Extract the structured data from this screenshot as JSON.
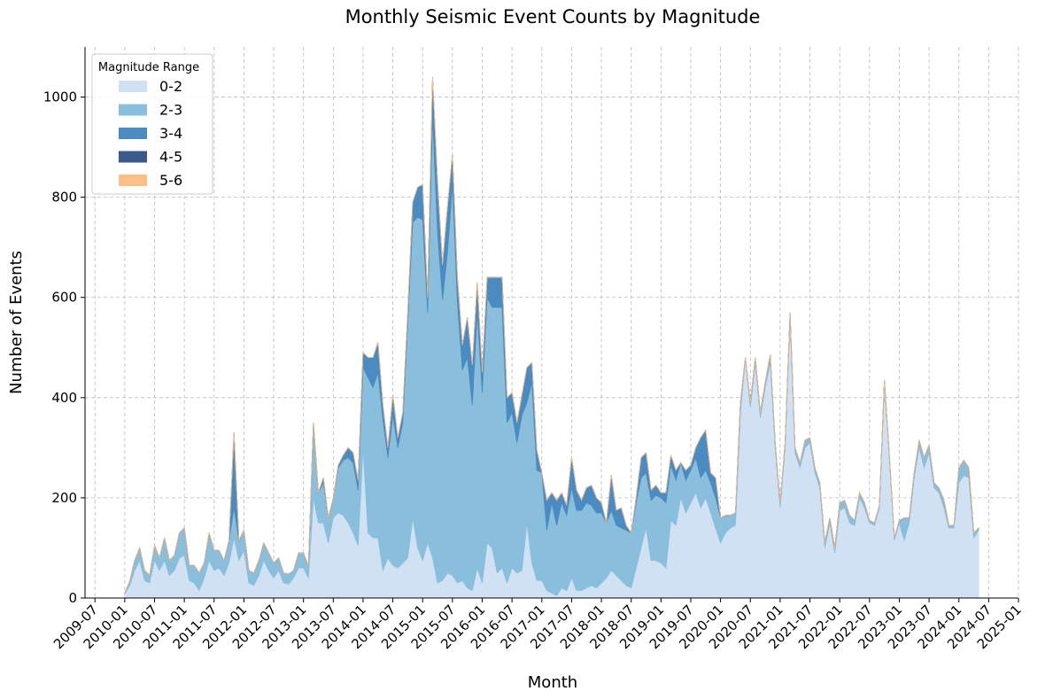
{
  "chart_data": {
    "type": "stacked_area",
    "title": "Monthly Seismic Event Counts by Magnitude",
    "x_label": "Month",
    "y_label": "Number of Events",
    "legend_title": "Magnitude Range",
    "legend_position": "upper left",
    "grid": true,
    "x": [
      "2010-01",
      "2010-02",
      "2010-03",
      "2010-04",
      "2010-05",
      "2010-06",
      "2010-07",
      "2010-08",
      "2010-09",
      "2010-10",
      "2010-11",
      "2010-12",
      "2011-01",
      "2011-02",
      "2011-03",
      "2011-04",
      "2011-05",
      "2011-06",
      "2011-07",
      "2011-08",
      "2011-09",
      "2011-10",
      "2011-11",
      "2011-12",
      "2012-01",
      "2012-02",
      "2012-03",
      "2012-04",
      "2012-05",
      "2012-06",
      "2012-07",
      "2012-08",
      "2012-09",
      "2012-10",
      "2012-11",
      "2012-12",
      "2013-01",
      "2013-02",
      "2013-03",
      "2013-04",
      "2013-05",
      "2013-06",
      "2013-07",
      "2013-08",
      "2013-09",
      "2013-10",
      "2013-11",
      "2013-12",
      "2014-01",
      "2014-02",
      "2014-03",
      "2014-04",
      "2014-05",
      "2014-06",
      "2014-07",
      "2014-08",
      "2014-09",
      "2014-10",
      "2014-11",
      "2014-12",
      "2015-01",
      "2015-02",
      "2015-03",
      "2015-04",
      "2015-05",
      "2015-06",
      "2015-07",
      "2015-08",
      "2015-09",
      "2015-10",
      "2015-11",
      "2015-12",
      "2016-01",
      "2016-02",
      "2016-03",
      "2016-04",
      "2016-05",
      "2016-06",
      "2016-07",
      "2016-08",
      "2016-09",
      "2016-10",
      "2016-11",
      "2016-12",
      "2017-01",
      "2017-02",
      "2017-03",
      "2017-04",
      "2017-05",
      "2017-06",
      "2017-07",
      "2017-08",
      "2017-09",
      "2017-10",
      "2017-11",
      "2017-12",
      "2018-01",
      "2018-02",
      "2018-03",
      "2018-04",
      "2018-05",
      "2018-06",
      "2018-07",
      "2018-08",
      "2018-09",
      "2018-10",
      "2018-11",
      "2018-12",
      "2019-01",
      "2019-02",
      "2019-03",
      "2019-04",
      "2019-05",
      "2019-06",
      "2019-07",
      "2019-08",
      "2019-09",
      "2019-10",
      "2019-11",
      "2019-12",
      "2020-01",
      "2020-02",
      "2020-03",
      "2020-04",
      "2020-05",
      "2020-06",
      "2020-07",
      "2020-08",
      "2020-09",
      "2020-10",
      "2020-11",
      "2020-12",
      "2021-01",
      "2021-02",
      "2021-03",
      "2021-04",
      "2021-05",
      "2021-06",
      "2021-07",
      "2021-08",
      "2021-09",
      "2021-10",
      "2021-11",
      "2021-12",
      "2022-01",
      "2022-02",
      "2022-03",
      "2022-04",
      "2022-05",
      "2022-06",
      "2022-07",
      "2022-08",
      "2022-09",
      "2022-10",
      "2022-11",
      "2022-12",
      "2023-01",
      "2023-02",
      "2023-03",
      "2023-04",
      "2023-05",
      "2023-06",
      "2023-07",
      "2023-08",
      "2023-09",
      "2023-10",
      "2023-11",
      "2023-12",
      "2024-01",
      "2024-02",
      "2024-03",
      "2024-04",
      "2024-05"
    ],
    "series": [
      {
        "name": "0-2",
        "color": "#cfe1f2",
        "values": [
          8,
          25,
          55,
          75,
          35,
          30,
          75,
          55,
          75,
          45,
          55,
          80,
          85,
          35,
          30,
          15,
          40,
          75,
          55,
          60,
          45,
          70,
          120,
          75,
          95,
          30,
          25,
          45,
          75,
          55,
          40,
          55,
          30,
          28,
          40,
          60,
          60,
          40,
          200,
          150,
          150,
          110,
          160,
          170,
          165,
          150,
          130,
          105,
          300,
          130,
          120,
          120,
          55,
          80,
          65,
          60,
          70,
          80,
          160,
          100,
          75,
          110,
          80,
          30,
          35,
          50,
          45,
          30,
          35,
          20,
          15,
          60,
          30,
          110,
          100,
          50,
          60,
          30,
          60,
          50,
          55,
          150,
          70,
          35,
          35,
          15,
          10,
          5,
          20,
          15,
          40,
          15,
          15,
          20,
          25,
          20,
          30,
          40,
          55,
          45,
          35,
          25,
          20,
          60,
          100,
          140,
          75,
          75,
          70,
          60,
          155,
          145,
          200,
          170,
          190,
          210,
          180,
          200,
          170,
          140,
          110,
          130,
          140,
          145,
          370,
          480,
          380,
          470,
          360,
          420,
          470,
          300,
          180,
          300,
          560,
          290,
          260,
          300,
          310,
          250,
          220,
          100,
          150,
          90,
          175,
          180,
          150,
          145,
          200,
          180,
          150,
          145,
          180,
          430,
          280,
          115,
          150,
          115,
          150,
          240,
          300,
          260,
          290,
          220,
          210,
          180,
          140,
          140,
          230,
          245,
          240,
          120,
          135
        ]
      },
      {
        "name": "2-3",
        "color": "#89bedc",
        "values": [
          2,
          8,
          20,
          25,
          20,
          15,
          30,
          25,
          45,
          30,
          30,
          50,
          55,
          30,
          35,
          35,
          30,
          55,
          40,
          35,
          30,
          45,
          60,
          40,
          40,
          25,
          25,
          30,
          35,
          35,
          30,
          25,
          20,
          20,
          15,
          30,
          30,
          25,
          150,
          60,
          80,
          50,
          40,
          90,
          110,
          130,
          140,
          110,
          160,
          310,
          300,
          330,
          300,
          200,
          300,
          240,
          280,
          470,
          590,
          660,
          680,
          460,
          880,
          700,
          560,
          640,
          780,
          560,
          420,
          460,
          370,
          510,
          380,
          490,
          480,
          530,
          520,
          320,
          310,
          260,
          310,
          240,
          360,
          220,
          215,
          120,
          180,
          140,
          170,
          150,
          180,
          160,
          160,
          170,
          160,
          150,
          140,
          110,
          120,
          100,
          105,
          110,
          110,
          130,
          140,
          110,
          120,
          130,
          130,
          130,
          110,
          90,
          70,
          65,
          65,
          70,
          60,
          55,
          60,
          60,
          50,
          35,
          25,
          25,
          20,
          0,
          10,
          10,
          10,
          10,
          15,
          10,
          10,
          10,
          10,
          10,
          10,
          15,
          10,
          10,
          10,
          10,
          10,
          10,
          15,
          15,
          15,
          10,
          10,
          10,
          5,
          5,
          5,
          5,
          5,
          5,
          5,
          45,
          10,
          10,
          15,
          20,
          15,
          10,
          10,
          15,
          5,
          5,
          30,
          30,
          20,
          10,
          5
        ]
      },
      {
        "name": "3-4",
        "color": "#4a8bc2",
        "values": [
          0,
          0,
          0,
          0,
          0,
          0,
          0,
          0,
          0,
          0,
          0,
          0,
          0,
          0,
          0,
          0,
          0,
          0,
          0,
          0,
          0,
          0,
          150,
          0,
          0,
          0,
          0,
          0,
          0,
          0,
          0,
          0,
          0,
          0,
          0,
          0,
          0,
          0,
          0,
          0,
          10,
          0,
          0,
          5,
          10,
          20,
          20,
          20,
          30,
          40,
          60,
          60,
          30,
          20,
          40,
          20,
          20,
          20,
          40,
          60,
          70,
          30,
          80,
          100,
          70,
          90,
          60,
          50,
          50,
          80,
          80,
          60,
          40,
          40,
          60,
          60,
          60,
          50,
          40,
          40,
          40,
          70,
          40,
          40,
          0,
          60,
          20,
          50,
          20,
          20,
          60,
          40,
          20,
          30,
          40,
          30,
          20,
          0,
          70,
          30,
          40,
          10,
          0,
          10,
          40,
          40,
          20,
          20,
          10,
          20,
          20,
          20,
          0,
          20,
          10,
          20,
          80,
          80,
          20,
          40,
          0,
          0,
          0,
          0,
          0,
          0,
          0,
          0,
          0,
          0,
          0,
          0,
          0,
          0,
          0,
          0,
          0,
          0,
          0,
          0,
          0,
          0,
          0,
          0,
          0,
          0,
          0,
          0,
          0,
          0,
          0,
          0,
          0,
          0,
          0,
          0,
          0,
          0,
          0,
          0,
          0,
          0,
          0,
          0,
          0,
          0,
          0,
          0,
          0,
          0,
          0,
          0,
          0
        ]
      },
      {
        "name": "4-5",
        "color": "#3a5a8c",
        "values": [
          0,
          0,
          0,
          0,
          0,
          0,
          0,
          0,
          0,
          0,
          0,
          0,
          0,
          0,
          0,
          0,
          0,
          0,
          0,
          0,
          0,
          0,
          0,
          0,
          0,
          0,
          0,
          0,
          0,
          0,
          0,
          0,
          0,
          0,
          0,
          0,
          0,
          0,
          0,
          0,
          0,
          0,
          0,
          0,
          0,
          0,
          0,
          0,
          0,
          0,
          0,
          0,
          0,
          0,
          0,
          0,
          0,
          0,
          0,
          0,
          0,
          0,
          0,
          0,
          0,
          0,
          0,
          0,
          0,
          0,
          0,
          0,
          0,
          0,
          0,
          0,
          0,
          0,
          0,
          0,
          0,
          0,
          0,
          0,
          0,
          0,
          0,
          0,
          0,
          0,
          0,
          0,
          0,
          0,
          0,
          0,
          0,
          0,
          0,
          0,
          0,
          0,
          0,
          0,
          0,
          0,
          0,
          0,
          0,
          0,
          0,
          0,
          0,
          0,
          0,
          0,
          0,
          0,
          0,
          0,
          0,
          0,
          0,
          0,
          0,
          0,
          0,
          0,
          0,
          0,
          0,
          0,
          0,
          0,
          0,
          0,
          0,
          0,
          0,
          0,
          0,
          0,
          0,
          0,
          0,
          0,
          0,
          0,
          0,
          0,
          0,
          0,
          0,
          0,
          0,
          0,
          0,
          0,
          0,
          0,
          0,
          0,
          0,
          0,
          0,
          0,
          0,
          0,
          0,
          0,
          0,
          0,
          0
        ]
      },
      {
        "name": "5-6",
        "color": "#fdbf86",
        "values": [
          0,
          0,
          0,
          0,
          0,
          0,
          0,
          0,
          0,
          0,
          0,
          0,
          0,
          0,
          0,
          0,
          0,
          0,
          0,
          0,
          0,
          0,
          0,
          0,
          0,
          0,
          0,
          0,
          0,
          0,
          0,
          0,
          0,
          0,
          0,
          0,
          0,
          0,
          0,
          0,
          0,
          0,
          0,
          0,
          0,
          0,
          0,
          0,
          0,
          0,
          0,
          0,
          0,
          0,
          0,
          0,
          0,
          0,
          0,
          0,
          0,
          0,
          0,
          0,
          0,
          0,
          0,
          0,
          0,
          0,
          0,
          0,
          0,
          0,
          0,
          0,
          0,
          0,
          0,
          0,
          0,
          0,
          0,
          0,
          0,
          0,
          0,
          0,
          0,
          0,
          0,
          0,
          0,
          0,
          0,
          0,
          0,
          0,
          0,
          0,
          0,
          0,
          0,
          0,
          0,
          0,
          0,
          0,
          0,
          0,
          0,
          0,
          0,
          0,
          0,
          0,
          0,
          0,
          0,
          0,
          0,
          0,
          0,
          0,
          0,
          0,
          0,
          0,
          0,
          0,
          0,
          0,
          0,
          0,
          0,
          0,
          0,
          0,
          0,
          0,
          0,
          0,
          0,
          0,
          0,
          0,
          0,
          0,
          0,
          0,
          0,
          0,
          0,
          0,
          0,
          0,
          0,
          0,
          0,
          0,
          0,
          0,
          0,
          0,
          0,
          0,
          0,
          0,
          0,
          0,
          0,
          0,
          0
        ]
      }
    ],
    "xlim": [
      "2009-05",
      "2025-01"
    ],
    "xticks": [
      "2009-07",
      "2010-01",
      "2010-07",
      "2011-01",
      "2011-07",
      "2012-01",
      "2012-07",
      "2013-01",
      "2013-07",
      "2014-01",
      "2014-07",
      "2015-01",
      "2015-07",
      "2016-01",
      "2016-07",
      "2017-01",
      "2017-07",
      "2018-01",
      "2018-07",
      "2019-01",
      "2019-07",
      "2020-01",
      "2020-07",
      "2021-01",
      "2021-07",
      "2022-01",
      "2022-07",
      "2023-01",
      "2023-07",
      "2024-01",
      "2024-07",
      "2025-01"
    ],
    "ylim": [
      0,
      1100
    ],
    "yticks": [
      0,
      200,
      400,
      600,
      800,
      1000
    ]
  }
}
